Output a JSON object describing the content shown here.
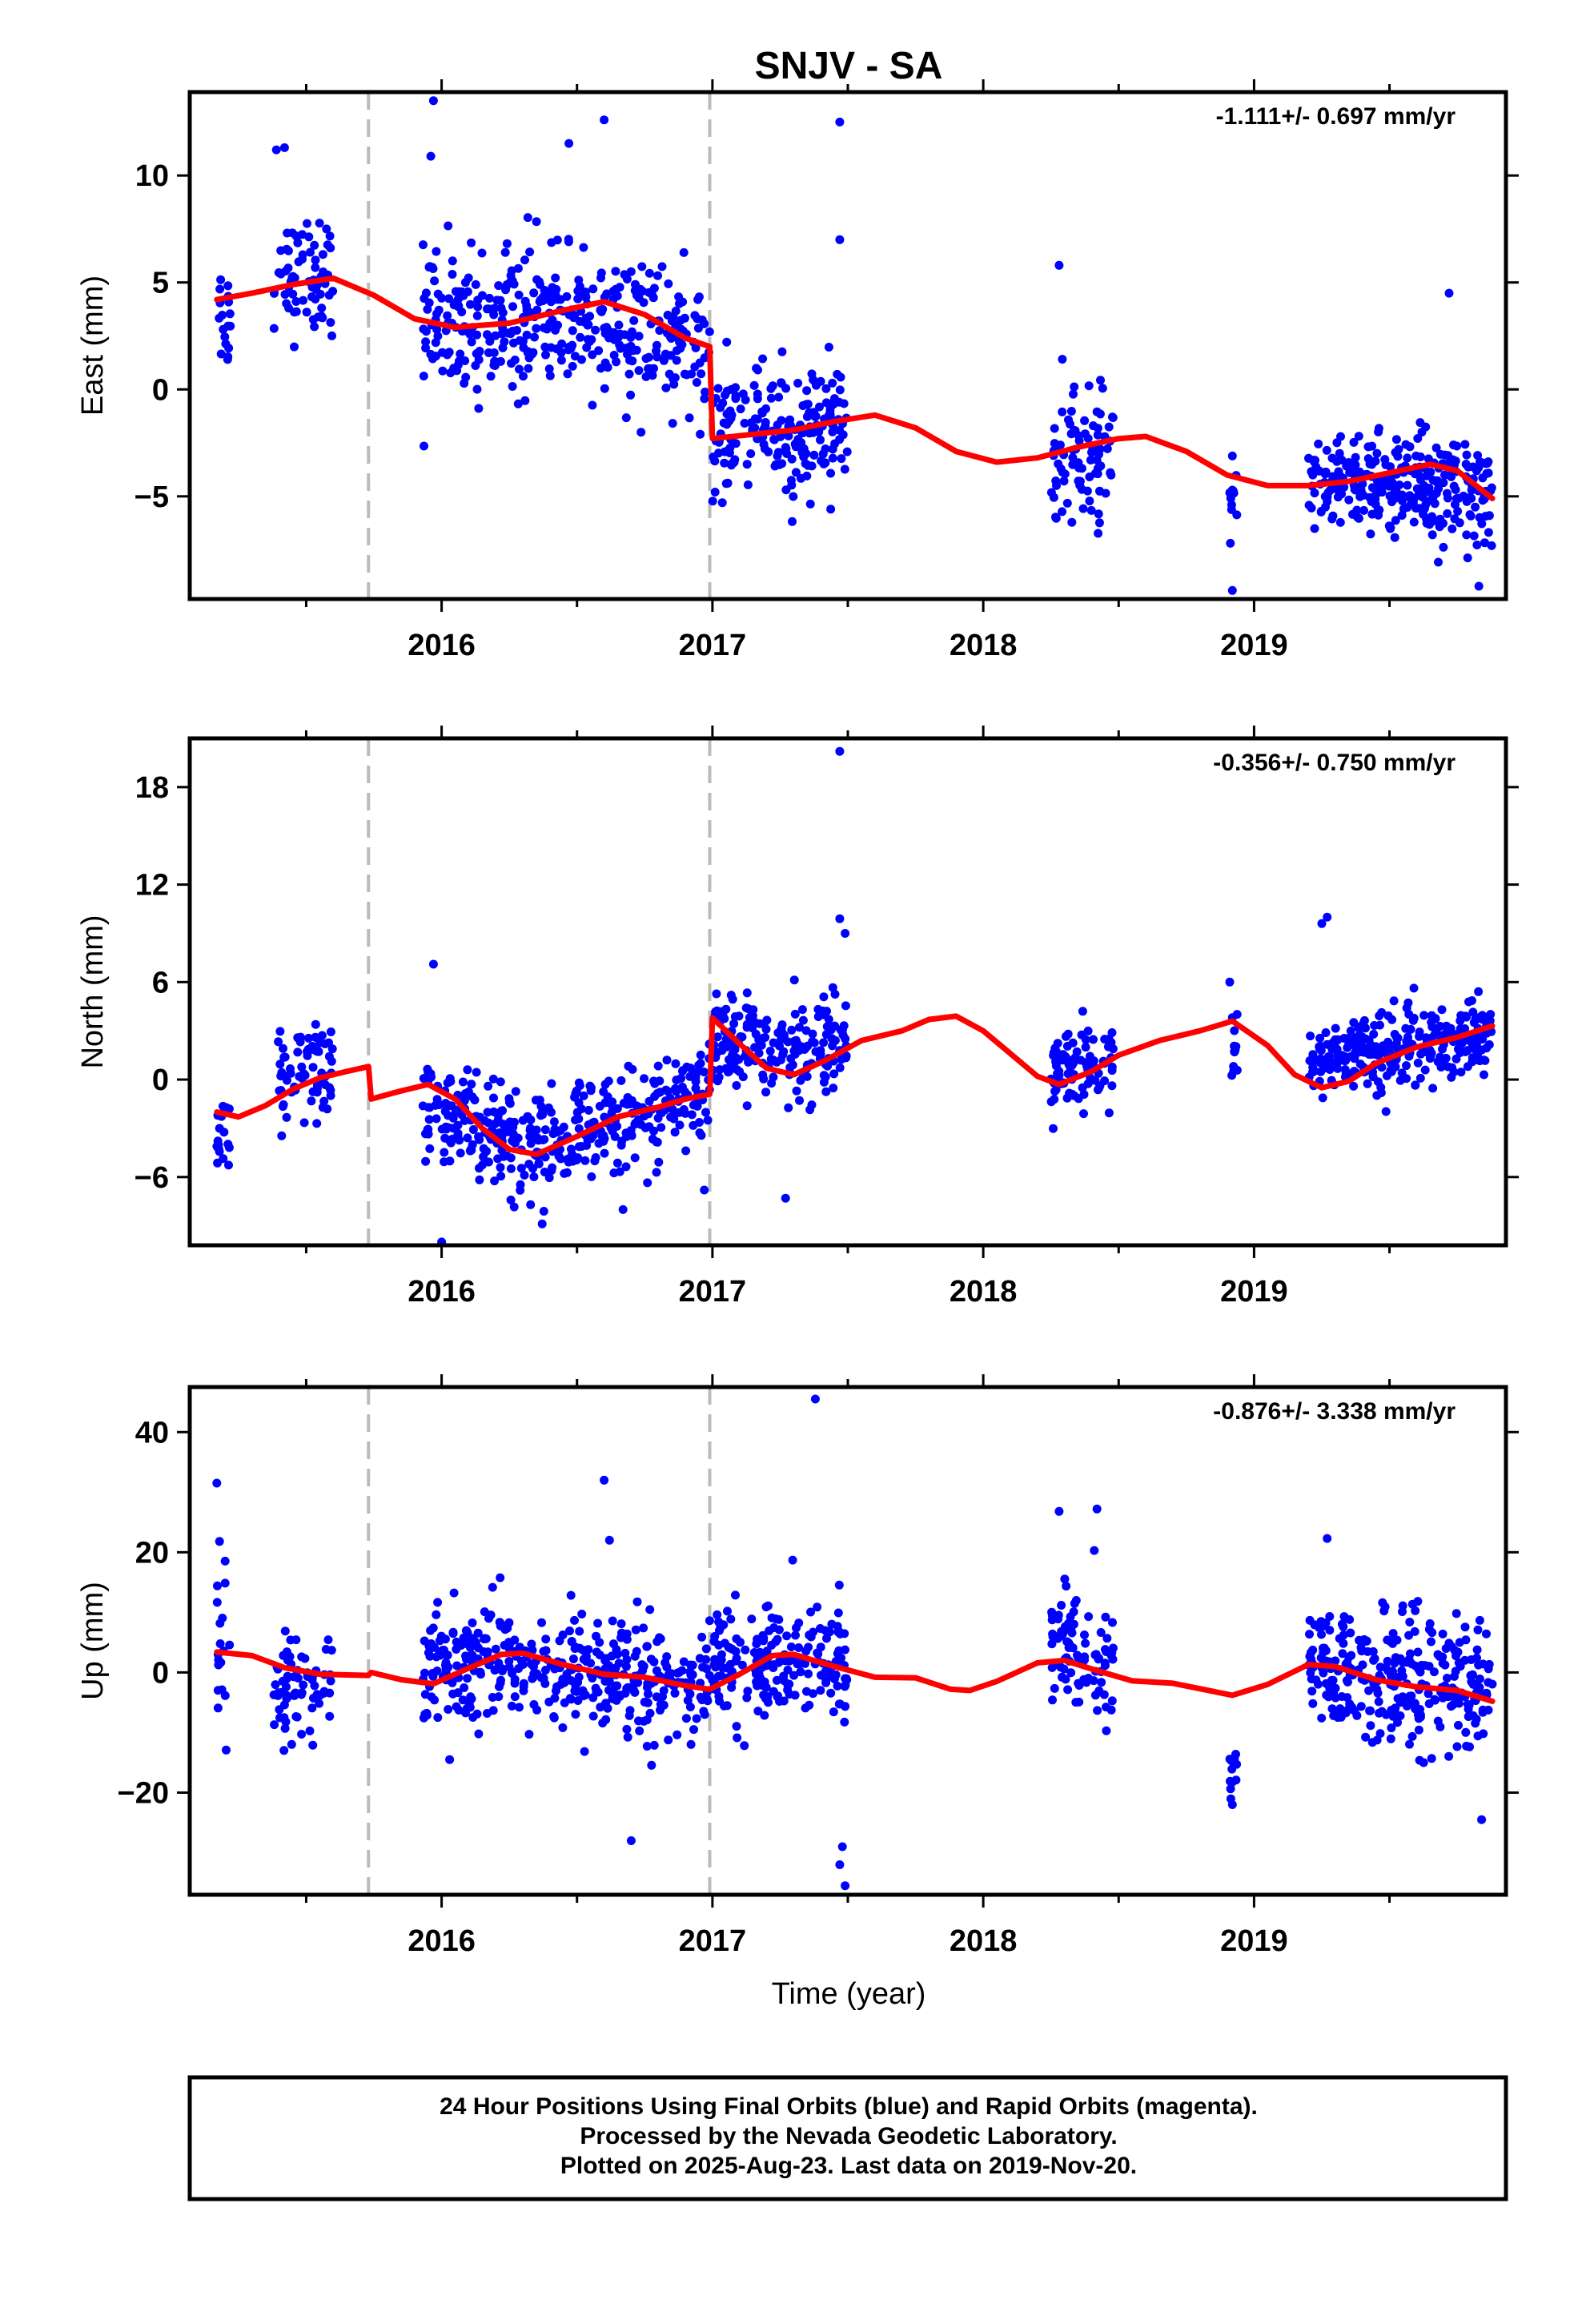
{
  "title": "SNJV - SA",
  "xlabel": "Time (year)",
  "footer": {
    "line1": "24 Hour Positions Using Final Orbits (blue) and Rapid Orbits (magenta).",
    "line2": "Processed by the Nevada Geodetic Laboratory.",
    "line3": "Plotted on 2025-Aug-23. Last data on 2019-Nov-20."
  },
  "colors": {
    "points": "#0000ff",
    "model": "#ff0000",
    "break_lines": "#bbbbbb"
  },
  "chart_data": [
    {
      "type": "scatter",
      "ylabel": "East (mm)",
      "rate_text": "-1.111+/- 0.697 mm/yr",
      "xlim": [
        2015.07,
        2019.93
      ],
      "ylim": [
        -9.8,
        13.9
      ],
      "x_ticks": [
        2016,
        2017,
        2018,
        2019
      ],
      "y_ticks": [
        -5,
        0,
        5,
        10
      ],
      "break_lines": [
        2015.73,
        2016.99
      ],
      "model": [
        [
          2015.17,
          4.2
        ],
        [
          2015.3,
          4.5
        ],
        [
          2015.45,
          4.9
        ],
        [
          2015.6,
          5.2
        ],
        [
          2015.75,
          4.4
        ],
        [
          2015.9,
          3.3
        ],
        [
          2016.05,
          2.9
        ],
        [
          2016.25,
          3.1
        ],
        [
          2016.45,
          3.7
        ],
        [
          2016.6,
          4.1
        ],
        [
          2016.75,
          3.5
        ],
        [
          2016.9,
          2.4
        ],
        [
          2016.99,
          2.0
        ],
        [
          2017.0,
          -2.3
        ],
        [
          2017.15,
          -2.1
        ],
        [
          2017.3,
          -1.9
        ],
        [
          2017.45,
          -1.5
        ],
        [
          2017.6,
          -1.2
        ],
        [
          2017.75,
          -1.8
        ],
        [
          2017.9,
          -2.9
        ],
        [
          2018.05,
          -3.4
        ],
        [
          2018.2,
          -3.2
        ],
        [
          2018.35,
          -2.7
        ],
        [
          2018.5,
          -2.3
        ],
        [
          2018.6,
          -2.2
        ],
        [
          2018.75,
          -2.9
        ],
        [
          2018.9,
          -4.0
        ],
        [
          2019.05,
          -4.5
        ],
        [
          2019.2,
          -4.5
        ],
        [
          2019.35,
          -4.3
        ],
        [
          2019.5,
          -3.9
        ],
        [
          2019.65,
          -3.5
        ],
        [
          2019.75,
          -3.8
        ],
        [
          2019.88,
          -5.1
        ]
      ],
      "segments": [
        {
          "x0": 2015.17,
          "x1": 2015.22,
          "n": 18,
          "y0": 3.5,
          "y1": 3.5,
          "spread": 2.2
        },
        {
          "x0": 2015.38,
          "x1": 2015.6,
          "n": 70,
          "y0": 5.0,
          "y1": 5.5,
          "spread": 2.2
        },
        {
          "x0": 2015.93,
          "x1": 2016.35,
          "n": 170,
          "y0": 3.2,
          "y1": 3.2,
          "spread": 2.8
        },
        {
          "x0": 2016.35,
          "x1": 2016.99,
          "n": 230,
          "y0": 3.6,
          "y1": 1.8,
          "spread": 2.6
        },
        {
          "x0": 2017.0,
          "x1": 2017.5,
          "n": 200,
          "y0": -2.5,
          "y1": -1.5,
          "spread": 2.5
        },
        {
          "x0": 2018.25,
          "x1": 2018.48,
          "n": 90,
          "y0": -3.4,
          "y1": -3.0,
          "spread": 2.5
        },
        {
          "x0": 2018.91,
          "x1": 2018.94,
          "n": 12,
          "y0": -5.5,
          "y1": -5.5,
          "spread": 2.6
        },
        {
          "x0": 2019.2,
          "x1": 2019.88,
          "n": 300,
          "y0": -4.3,
          "y1": -4.8,
          "spread": 2.0
        }
      ],
      "outliers": [
        [
          2015.39,
          11.2
        ],
        [
          2015.42,
          11.3
        ],
        [
          2015.97,
          13.5
        ],
        [
          2015.96,
          10.9
        ],
        [
          2016.47,
          11.5
        ],
        [
          2016.6,
          12.6
        ],
        [
          2017.47,
          12.5
        ],
        [
          2017.47,
          7.0
        ],
        [
          2018.28,
          5.8
        ],
        [
          2018.92,
          -9.4
        ],
        [
          2019.83,
          -9.2
        ],
        [
          2019.72,
          4.5
        ]
      ]
    },
    {
      "type": "scatter",
      "ylabel": "North (mm)",
      "rate_text": "-0.356+/- 0.750 mm/yr",
      "xlim": [
        2015.07,
        2019.93
      ],
      "ylim": [
        -10.2,
        21.0
      ],
      "x_ticks": [
        2016,
        2017,
        2018,
        2019
      ],
      "y_ticks": [
        -6,
        0,
        6,
        12,
        18
      ],
      "break_lines": [
        2015.73,
        2016.99
      ],
      "model": [
        [
          2015.17,
          -2.0
        ],
        [
          2015.25,
          -2.3
        ],
        [
          2015.35,
          -1.6
        ],
        [
          2015.45,
          -0.6
        ],
        [
          2015.55,
          0.1
        ],
        [
          2015.65,
          0.5
        ],
        [
          2015.73,
          0.8
        ],
        [
          2015.74,
          -1.2
        ],
        [
          2015.85,
          -0.7
        ],
        [
          2015.95,
          -0.3
        ],
        [
          2016.05,
          -1.2
        ],
        [
          2016.15,
          -3.0
        ],
        [
          2016.25,
          -4.3
        ],
        [
          2016.35,
          -4.6
        ],
        [
          2016.5,
          -3.5
        ],
        [
          2016.65,
          -2.3
        ],
        [
          2016.8,
          -1.7
        ],
        [
          2016.9,
          -1.2
        ],
        [
          2016.99,
          -0.9
        ],
        [
          2017.0,
          3.8
        ],
        [
          2017.1,
          2.2
        ],
        [
          2017.2,
          0.7
        ],
        [
          2017.3,
          0.3
        ],
        [
          2017.42,
          1.2
        ],
        [
          2017.55,
          2.4
        ],
        [
          2017.7,
          3.0
        ],
        [
          2017.8,
          3.7
        ],
        [
          2017.9,
          3.9
        ],
        [
          2018.0,
          3.0
        ],
        [
          2018.1,
          1.6
        ],
        [
          2018.2,
          0.2
        ],
        [
          2018.28,
          -0.3
        ],
        [
          2018.4,
          0.5
        ],
        [
          2018.5,
          1.5
        ],
        [
          2018.65,
          2.4
        ],
        [
          2018.8,
          3.0
        ],
        [
          2018.92,
          3.6
        ],
        [
          2019.05,
          2.1
        ],
        [
          2019.15,
          0.3
        ],
        [
          2019.25,
          -0.5
        ],
        [
          2019.35,
          -0.1
        ],
        [
          2019.45,
          1.0
        ],
        [
          2019.6,
          2.0
        ],
        [
          2019.75,
          2.6
        ],
        [
          2019.88,
          3.3
        ]
      ],
      "segments": [
        {
          "x0": 2015.17,
          "x1": 2015.22,
          "n": 18,
          "y0": -3.5,
          "y1": -3.5,
          "spread": 2.5
        },
        {
          "x0": 2015.38,
          "x1": 2015.6,
          "n": 70,
          "y0": -0.5,
          "y1": 0.8,
          "spread": 2.6
        },
        {
          "x0": 2015.93,
          "x1": 2016.35,
          "n": 170,
          "y0": -1.5,
          "y1": -4.5,
          "spread": 2.5
        },
        {
          "x0": 2016.35,
          "x1": 2016.99,
          "n": 230,
          "y0": -4.0,
          "y1": -0.8,
          "spread": 2.5
        },
        {
          "x0": 2017.0,
          "x1": 2017.5,
          "n": 200,
          "y0": 2.5,
          "y1": 1.5,
          "spread": 2.6
        },
        {
          "x0": 2018.25,
          "x1": 2018.48,
          "n": 90,
          "y0": 0.3,
          "y1": 1.2,
          "spread": 2.3
        },
        {
          "x0": 2018.91,
          "x1": 2018.94,
          "n": 12,
          "y0": 2.0,
          "y1": 2.0,
          "spread": 2.0
        },
        {
          "x0": 2019.2,
          "x1": 2019.88,
          "n": 300,
          "y0": 1.0,
          "y1": 2.5,
          "spread": 2.0
        }
      ],
      "outliers": [
        [
          2017.47,
          20.2
        ],
        [
          2017.47,
          9.9
        ],
        [
          2017.49,
          9.0
        ],
        [
          2019.25,
          9.6
        ],
        [
          2019.27,
          10.0
        ],
        [
          2018.91,
          6.0
        ],
        [
          2015.97,
          7.1
        ],
        [
          2016.0,
          -10.0
        ],
        [
          2016.97,
          -6.8
        ],
        [
          2017.27,
          -7.3
        ],
        [
          2016.67,
          -8.0
        ]
      ]
    },
    {
      "type": "scatter",
      "ylabel": "Up (mm)",
      "rate_text": "-0.876+/- 3.338 mm/yr",
      "xlim": [
        2015.07,
        2019.93
      ],
      "ylim": [
        -37,
        47.5
      ],
      "x_ticks": [
        2016,
        2017,
        2018,
        2019
      ],
      "y_ticks": [
        -20,
        0,
        20,
        40
      ],
      "break_lines": [
        2015.73,
        2016.99
      ],
      "model": [
        [
          2015.17,
          3.4
        ],
        [
          2015.3,
          2.8
        ],
        [
          2015.42,
          0.8
        ],
        [
          2015.55,
          -0.3
        ],
        [
          2015.73,
          -0.5
        ],
        [
          2015.74,
          0.0
        ],
        [
          2015.85,
          -1.2
        ],
        [
          2015.97,
          -1.9
        ],
        [
          2016.1,
          0.7
        ],
        [
          2016.22,
          3.0
        ],
        [
          2016.3,
          3.2
        ],
        [
          2016.45,
          1.3
        ],
        [
          2016.6,
          -0.3
        ],
        [
          2016.75,
          -0.8
        ],
        [
          2016.9,
          -2.2
        ],
        [
          2016.99,
          -2.8
        ],
        [
          2017.1,
          -0.3
        ],
        [
          2017.22,
          2.8
        ],
        [
          2017.3,
          3.0
        ],
        [
          2017.45,
          1.0
        ],
        [
          2017.6,
          -0.8
        ],
        [
          2017.75,
          -0.9
        ],
        [
          2017.88,
          -2.8
        ],
        [
          2017.95,
          -3.0
        ],
        [
          2018.05,
          -1.5
        ],
        [
          2018.2,
          1.6
        ],
        [
          2018.3,
          2.0
        ],
        [
          2018.42,
          0.3
        ],
        [
          2018.55,
          -1.4
        ],
        [
          2018.7,
          -1.8
        ],
        [
          2018.82,
          -2.9
        ],
        [
          2018.92,
          -3.8
        ],
        [
          2019.05,
          -2.0
        ],
        [
          2019.2,
          1.3
        ],
        [
          2019.3,
          1.0
        ],
        [
          2019.45,
          -1.2
        ],
        [
          2019.6,
          -2.4
        ],
        [
          2019.75,
          -3.0
        ],
        [
          2019.88,
          -4.8
        ]
      ],
      "segments": [
        {
          "x0": 2015.17,
          "x1": 2015.22,
          "n": 18,
          "y0": 5.0,
          "y1": 5.0,
          "spread": 9
        },
        {
          "x0": 2015.38,
          "x1": 2015.6,
          "n": 70,
          "y0": -2.0,
          "y1": -2.0,
          "spread": 7
        },
        {
          "x0": 2015.93,
          "x1": 2016.35,
          "n": 170,
          "y0": 1.5,
          "y1": 2.5,
          "spread": 8
        },
        {
          "x0": 2016.35,
          "x1": 2016.99,
          "n": 230,
          "y0": 0.0,
          "y1": -1.5,
          "spread": 8
        },
        {
          "x0": 2017.0,
          "x1": 2017.5,
          "n": 200,
          "y0": 1.0,
          "y1": 2.0,
          "spread": 8
        },
        {
          "x0": 2018.25,
          "x1": 2018.48,
          "n": 90,
          "y0": 6.0,
          "y1": 0.0,
          "spread": 8
        },
        {
          "x0": 2018.91,
          "x1": 2018.94,
          "n": 12,
          "y0": -17.0,
          "y1": -17.0,
          "spread": 5
        },
        {
          "x0": 2019.2,
          "x1": 2019.88,
          "n": 300,
          "y0": 0.5,
          "y1": -3.0,
          "spread": 9
        }
      ],
      "outliers": [
        [
          2015.17,
          31.5
        ],
        [
          2015.18,
          21.8
        ],
        [
          2016.6,
          32.0
        ],
        [
          2016.62,
          22.0
        ],
        [
          2017.38,
          45.5
        ],
        [
          2017.48,
          -29.0
        ],
        [
          2017.47,
          -32.0
        ],
        [
          2017.49,
          -35.5
        ],
        [
          2016.7,
          -28.0
        ],
        [
          2018.28,
          26.8
        ],
        [
          2018.42,
          27.2
        ],
        [
          2018.41,
          20.3
        ],
        [
          2018.92,
          -22.0
        ],
        [
          2019.27,
          22.3
        ],
        [
          2019.84,
          -24.5
        ]
      ]
    }
  ]
}
